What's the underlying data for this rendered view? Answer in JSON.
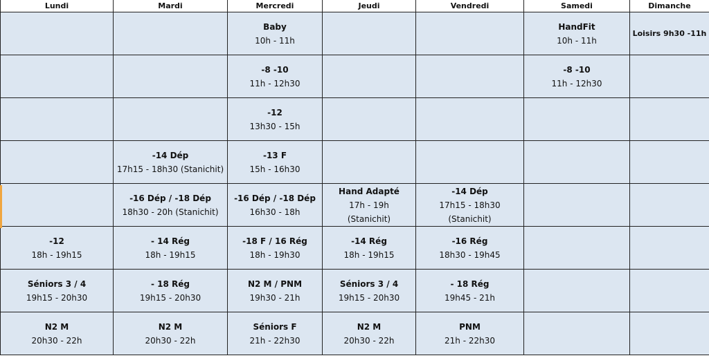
{
  "days": [
    "Lundi",
    "Mardi",
    "Mercredi",
    "Jeudi",
    "Vendredi",
    "Samedi",
    "Dimanche"
  ],
  "rows": [
    [
      {},
      {},
      {
        "title": "Baby",
        "lines": [
          "10h - 11h"
        ]
      },
      {},
      {},
      {
        "title": "HandFit",
        "lines": [
          "10h - 11h"
        ]
      },
      {
        "title": "Loisirs 9h30 -11h",
        "lines": []
      }
    ],
    [
      {},
      {},
      {
        "title": "-8 -10",
        "lines": [
          "11h - 12h30"
        ]
      },
      {},
      {},
      {
        "title": "-8 -10",
        "lines": [
          "11h - 12h30"
        ]
      },
      {}
    ],
    [
      {},
      {},
      {
        "title": "-12",
        "lines": [
          "13h30 - 15h"
        ]
      },
      {},
      {},
      {},
      {}
    ],
    [
      {},
      {
        "title": "-14 Dép",
        "lines": [
          "17h15 - 18h30 (Stanichit)"
        ]
      },
      {
        "title": "-13 F",
        "lines": [
          "15h - 16h30"
        ]
      },
      {},
      {},
      {},
      {}
    ],
    [
      {},
      {
        "title": "-16 Dép / -18 Dép",
        "lines": [
          "18h30 - 20h (Stanichit)"
        ]
      },
      {
        "title": "-16 Dép / -18 Dép",
        "lines": [
          "16h30 - 18h"
        ]
      },
      {
        "title": "Hand Adapté",
        "lines": [
          "17h - 19h",
          "(Stanichit)"
        ]
      },
      {
        "title": "-14 Dép",
        "lines": [
          "17h15 - 18h30",
          "(Stanichit)"
        ]
      },
      {},
      {}
    ],
    [
      {
        "title": "-12",
        "lines": [
          "18h - 19h15"
        ]
      },
      {
        "title": "- 14 Rég",
        "lines": [
          "18h - 19h15"
        ]
      },
      {
        "title": "-18 F / 16 Rég",
        "lines": [
          "18h - 19h30"
        ]
      },
      {
        "title": "-14 Rég",
        "lines": [
          "18h - 19h15"
        ]
      },
      {
        "title": "-16 Rég",
        "lines": [
          "18h30 - 19h45"
        ]
      },
      {},
      {}
    ],
    [
      {
        "title": "Séniors 3 / 4",
        "lines": [
          "19h15 - 20h30"
        ]
      },
      {
        "title": "- 18 Rég",
        "lines": [
          "19h15 - 20h30"
        ]
      },
      {
        "title": "N2 M / PNM",
        "lines": [
          "19h30 - 21h"
        ]
      },
      {
        "title": "Séniors 3 / 4",
        "lines": [
          "19h15 - 20h30"
        ]
      },
      {
        "title": "- 18 Rég",
        "lines": [
          "19h45 - 21h"
        ]
      },
      {},
      {}
    ],
    [
      {
        "title": "N2 M",
        "lines": [
          "20h30 - 22h"
        ]
      },
      {
        "title": "N2 M",
        "lines": [
          "20h30 - 22h"
        ]
      },
      {
        "title": "Séniors F",
        "lines": [
          "21h - 22h30"
        ]
      },
      {
        "title": "N2 M",
        "lines": [
          "20h30 - 22h"
        ]
      },
      {
        "title": "PNM",
        "lines": [
          "21h - 22h30"
        ]
      },
      {},
      {}
    ]
  ],
  "colors": {
    "cell_bg": "#dce6f1",
    "header_bg": "#ffffff",
    "border": "#222222",
    "marker": "#f0a640"
  }
}
